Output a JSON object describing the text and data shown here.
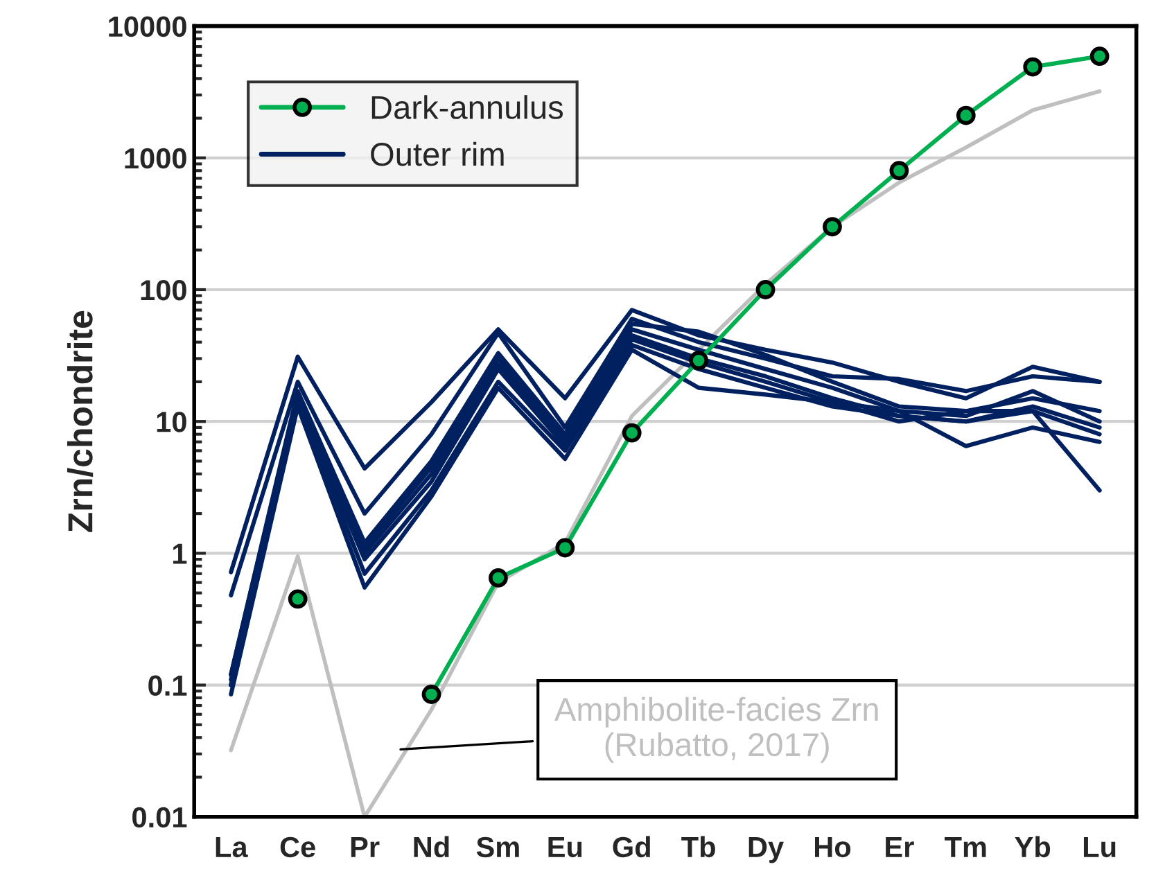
{
  "chart_data": {
    "type": "line",
    "ylabel": "Zrn/chondrite",
    "categories": [
      "La",
      "Ce",
      "Pr",
      "Nd",
      "Sm",
      "Eu",
      "Gd",
      "Tb",
      "Dy",
      "Ho",
      "Er",
      "Tm",
      "Yb",
      "Lu"
    ],
    "log": true,
    "ylim": [
      0.01,
      10000
    ],
    "yticks": [
      0.01,
      0.1,
      1,
      10,
      100,
      1000,
      10000
    ],
    "grid": "y",
    "legend": "top left",
    "series": [
      {
        "color": "#bfbfbf",
        "values": [
          0.032,
          0.95,
          0.01,
          0.065,
          0.6,
          1.2,
          11,
          35,
          110,
          300,
          650,
          1200,
          2300,
          3200
        ]
      },
      {
        "name": "Outer rim",
        "color": "#002060",
        "values": [
          0.72,
          31,
          4.4,
          14,
          50,
          15,
          70,
          45,
          35,
          28,
          20,
          15,
          26,
          20
        ]
      },
      {
        "color": "#002060",
        "values": [
          0.48,
          20,
          2.0,
          8,
          47,
          9,
          60,
          40,
          30,
          22,
          21,
          17,
          22,
          20
        ]
      },
      {
        "color": "#002060",
        "values": [
          0.12,
          17,
          1.2,
          5,
          33,
          8,
          55,
          48,
          32,
          20,
          13,
          12,
          15,
          12
        ]
      },
      {
        "color": "#002060",
        "values": [
          0.12,
          16,
          1.1,
          4.5,
          30,
          7.5,
          50,
          35,
          25,
          18,
          12,
          11,
          17,
          10
        ]
      },
      {
        "color": "#002060",
        "values": [
          0.11,
          15,
          1.0,
          4,
          27,
          7,
          45,
          30,
          22,
          15,
          11,
          10,
          13,
          9
        ]
      },
      {
        "color": "#002060",
        "values": [
          0.1,
          14,
          0.9,
          3.5,
          25,
          6.5,
          42,
          28,
          20,
          14,
          12,
          6.5,
          9,
          7
        ]
      },
      {
        "color": "#002060",
        "values": [
          0.1,
          14,
          0.7,
          3,
          20,
          6,
          38,
          25,
          18,
          13,
          11,
          10,
          12,
          8
        ]
      },
      {
        "color": "#002060",
        "values": [
          0.085,
          13,
          0.55,
          2.7,
          18,
          5.2,
          35,
          18,
          16,
          14,
          10,
          12,
          12,
          3
        ]
      },
      {
        "name": "Dark-annulus",
        "color": "#00b050",
        "marker": "circle",
        "values": [
          null,
          0.45,
          null,
          0.085,
          0.65,
          1.1,
          8.2,
          29,
          100,
          300,
          800,
          2100,
          4900,
          5900
        ]
      }
    ],
    "annotations": [
      "Amphibolite-facies Zrn\n(Rubatto, 2017)"
    ]
  }
}
